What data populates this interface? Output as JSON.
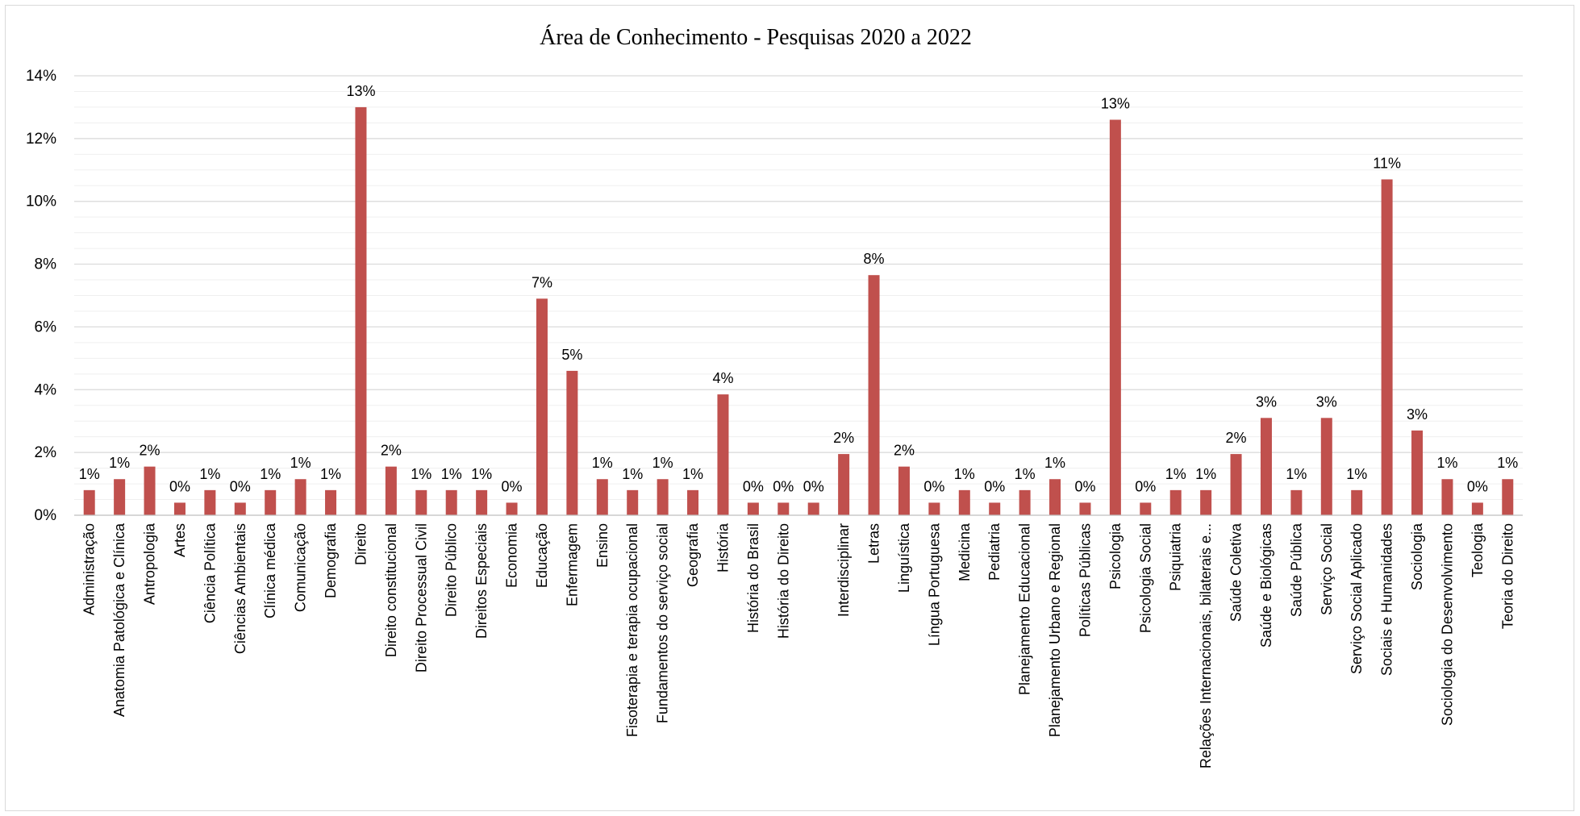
{
  "chart_data": {
    "type": "bar",
    "title": "Área de Conhecimento - Pesquisas 2020 a 2022",
    "xlabel": "",
    "ylabel": "",
    "ylim": [
      0,
      0.14
    ],
    "yticks": [
      "0%",
      "2%",
      "4%",
      "6%",
      "8%",
      "10%",
      "12%",
      "14%"
    ],
    "grid": true,
    "legend": "none",
    "bar_color": "#C0504D",
    "categories": [
      "Administração",
      "Anatomia Patológica e Clínica",
      "Antropologia",
      "Artes",
      "Ciência Política",
      "Ciências Ambientais",
      "Clínica médica",
      "Comunicação",
      "Demografia",
      "Direito",
      "Direito constitucional",
      "Direito Processual Civil",
      "Direito Público",
      "Direitos Especiais",
      "Economia",
      "Educação",
      "Enfermagem",
      "Ensino",
      "Fisoterapia e terapia ocupacional",
      "Fundamentos do serviço social",
      "Geografia",
      "História",
      "História do Brasil",
      "História do Direito",
      "",
      "Interdisciplinar",
      "Letras",
      "Linguística",
      "Língua Portuguesa",
      "Medicina",
      "Pediatria",
      "Planejamento Educacional",
      "Planejamento Urbano e Regional",
      "Políticas Públicas",
      "Psicologia",
      "Psicologia Social",
      "Psiquiatria",
      "Relações Internacionais, bilaterais e...",
      "Saúde Coletiva",
      "Saúde e Biológicas",
      "Saúde Pública",
      "Serviço Social",
      "Serviço Social Aplicado",
      "Sociais e Humanidades",
      "Sociologia",
      "Sociologia do Desenvolvimento",
      "Teologia",
      "Teoria do Direito"
    ],
    "values": [
      0.008,
      0.0115,
      0.0155,
      0.004,
      0.008,
      0.004,
      0.008,
      0.0115,
      0.008,
      0.13,
      0.0155,
      0.008,
      0.008,
      0.008,
      0.004,
      0.069,
      0.046,
      0.0115,
      0.008,
      0.0115,
      0.008,
      0.0385,
      0.004,
      0.004,
      0.004,
      0.0195,
      0.0765,
      0.0155,
      0.004,
      0.008,
      0.004,
      0.008,
      0.0115,
      0.004,
      0.126,
      0.004,
      0.008,
      0.008,
      0.0195,
      0.031,
      0.008,
      0.031,
      0.008,
      0.107,
      0.027,
      0.0115,
      0.004,
      0.0115
    ],
    "data_labels": [
      "1%",
      "1%",
      "2%",
      "0%",
      "1%",
      "0%",
      "1%",
      "1%",
      "1%",
      "13%",
      "2%",
      "1%",
      "1%",
      "1%",
      "0%",
      "7%",
      "5%",
      "1%",
      "1%",
      "1%",
      "1%",
      "4%",
      "0%",
      "0%",
      "0%",
      "2%",
      "8%",
      "2%",
      "0%",
      "1%",
      "0%",
      "1%",
      "1%",
      "0%",
      "13%",
      "0%",
      "1%",
      "1%",
      "2%",
      "3%",
      "1%",
      "3%",
      "1%",
      "11%",
      "3%",
      "1%",
      "0%",
      "1%"
    ]
  }
}
